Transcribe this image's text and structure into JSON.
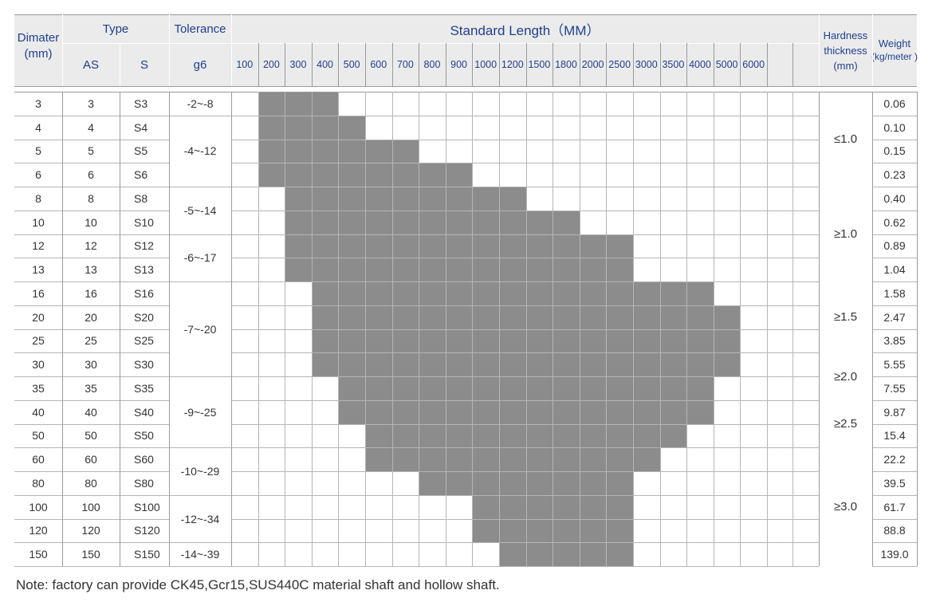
{
  "headers": {
    "dimater": "Dimater",
    "dimater_unit": "(mm)",
    "type": "Type",
    "type_as": "AS",
    "type_s": "S",
    "tolerance": "Tolerance",
    "tolerance_grade": "g6",
    "standard_length": "Standard Length（MM）",
    "hardness_line1": "Hardness",
    "hardness_line2": "thickness",
    "hardness_unit": "(mm)",
    "weight": "Weight",
    "weight_unit": "(kg/meter )"
  },
  "lengths": [
    "100",
    "200",
    "300",
    "400",
    "500",
    "600",
    "700",
    "800",
    "900",
    "1000",
    "1200",
    "1500",
    "1800",
    "2000",
    "2500",
    "3000",
    "3500",
    "4000",
    "5000",
    "6000"
  ],
  "rows": [
    {
      "d": "3",
      "as": "3",
      "s": "S3",
      "weight": "0.06",
      "range": [
        1,
        3
      ]
    },
    {
      "d": "4",
      "as": "4",
      "s": "S4",
      "weight": "0.10",
      "range": [
        1,
        4
      ]
    },
    {
      "d": "5",
      "as": "5",
      "s": "S5",
      "weight": "0.15",
      "range": [
        1,
        6
      ]
    },
    {
      "d": "6",
      "as": "6",
      "s": "S6",
      "weight": "0.23",
      "range": [
        1,
        8
      ]
    },
    {
      "d": "8",
      "as": "8",
      "s": "S8",
      "weight": "0.40",
      "range": [
        2,
        10
      ]
    },
    {
      "d": "10",
      "as": "10",
      "s": "S10",
      "weight": "0.62",
      "range": [
        2,
        12
      ]
    },
    {
      "d": "12",
      "as": "12",
      "s": "S12",
      "weight": "0.89",
      "range": [
        2,
        14
      ]
    },
    {
      "d": "13",
      "as": "13",
      "s": "S13",
      "weight": "1.04",
      "range": [
        2,
        14
      ]
    },
    {
      "d": "16",
      "as": "16",
      "s": "S16",
      "weight": "1.58",
      "range": [
        3,
        17
      ]
    },
    {
      "d": "20",
      "as": "20",
      "s": "S20",
      "weight": "2.47",
      "range": [
        3,
        18
      ]
    },
    {
      "d": "25",
      "as": "25",
      "s": "S25",
      "weight": "3.85",
      "range": [
        3,
        18
      ]
    },
    {
      "d": "30",
      "as": "30",
      "s": "S30",
      "weight": "5.55",
      "range": [
        3,
        18
      ]
    },
    {
      "d": "35",
      "as": "35",
      "s": "S35",
      "weight": "7.55",
      "range": [
        4,
        17
      ]
    },
    {
      "d": "40",
      "as": "40",
      "s": "S40",
      "weight": "9.87",
      "range": [
        4,
        17
      ]
    },
    {
      "d": "50",
      "as": "50",
      "s": "S50",
      "weight": "15.4",
      "range": [
        5,
        16
      ]
    },
    {
      "d": "60",
      "as": "60",
      "s": "S60",
      "weight": "22.2",
      "range": [
        5,
        15
      ]
    },
    {
      "d": "80",
      "as": "80",
      "s": "S80",
      "weight": "39.5",
      "range": [
        7,
        14
      ]
    },
    {
      "d": "100",
      "as": "100",
      "s": "S100",
      "weight": "61.7",
      "range": [
        9,
        14
      ]
    },
    {
      "d": "120",
      "as": "120",
      "s": "S120",
      "weight": "88.8",
      "range": [
        9,
        14
      ]
    },
    {
      "d": "150",
      "as": "150",
      "s": "S150",
      "weight": "139.0",
      "range": [
        10,
        14
      ]
    }
  ],
  "tolerance_groups": [
    {
      "label": "-2~-8",
      "rows": 1
    },
    {
      "label": "-4~-12",
      "rows": 3
    },
    {
      "label": "-5~-14",
      "rows": 2
    },
    {
      "label": "-6~-17",
      "rows": 2
    },
    {
      "label": "-7~-20",
      "rows": 4
    },
    {
      "label": "-9~-25",
      "rows": 3
    },
    {
      "label": "-10~-29",
      "rows": 2
    },
    {
      "label": "-12~-34",
      "rows": 2
    },
    {
      "label": "-14~-39",
      "rows": 1
    }
  ],
  "hardness_groups": [
    {
      "label": "≤1.0",
      "rows": 4
    },
    {
      "label": "≥1.0",
      "rows": 4
    },
    {
      "label": "≥1.5",
      "rows": 3
    },
    {
      "label": "≥2.0",
      "rows": 2
    },
    {
      "label": "≥2.5",
      "rows": 2
    },
    {
      "label": "≥3.0",
      "rows": 5
    }
  ],
  "colors": {
    "header_bg": "#ebebeb",
    "header_text": "#1f3f8f",
    "fill": "#8c8c8c",
    "grid": "#9a9a9a"
  },
  "note": "Note: factory can provide CK45,Gcr15,SUS440C material shaft and hollow shaft."
}
